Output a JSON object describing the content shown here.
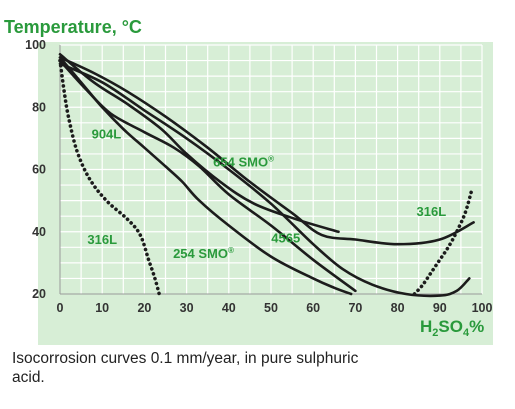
{
  "chart_data": {
    "type": "line",
    "ylabel": "Temperature, °C",
    "xlabel": "H2SO4%",
    "xlabel_parts": {
      "base": "H",
      "sub1": "2",
      "mid": "SO",
      "sub2": "4",
      "tail": "%"
    },
    "xlim": [
      0,
      100
    ],
    "ylim": [
      20,
      100
    ],
    "x_ticks": [
      0,
      10,
      20,
      30,
      40,
      50,
      60,
      70,
      80,
      90,
      100
    ],
    "y_ticks": [
      20,
      40,
      60,
      80,
      100
    ],
    "grid": true,
    "series": [
      {
        "name": "316L",
        "style": "dotted",
        "points": [
          [
            0,
            95
          ],
          [
            1,
            85
          ],
          [
            2,
            77
          ],
          [
            4,
            66
          ],
          [
            7,
            57
          ],
          [
            11,
            50
          ],
          [
            16,
            44
          ],
          [
            19,
            39
          ],
          [
            21,
            31
          ],
          [
            22.5,
            25
          ],
          [
            23.5,
            20
          ]
        ]
      },
      {
        "name": "316L",
        "style": "dotted",
        "points": [
          [
            84,
            20
          ],
          [
            86,
            23
          ],
          [
            88,
            27
          ],
          [
            90,
            31
          ],
          [
            92,
            35
          ],
          [
            94,
            40
          ],
          [
            96,
            46
          ],
          [
            97.5,
            53
          ]
        ]
      },
      {
        "name": "904L",
        "style": "solid",
        "points": [
          [
            0,
            95
          ],
          [
            6,
            86
          ],
          [
            12,
            78
          ],
          [
            20,
            72
          ],
          [
            27,
            67
          ],
          [
            33,
            61
          ],
          [
            40,
            52
          ],
          [
            50,
            42
          ],
          [
            60,
            31
          ],
          [
            70,
            21
          ]
        ]
      },
      {
        "name": "654 SMO®",
        "style": "solid",
        "points": [
          [
            0,
            96
          ],
          [
            8,
            91
          ],
          [
            16,
            85
          ],
          [
            25,
            77
          ],
          [
            35,
            67
          ],
          [
            45,
            56
          ],
          [
            55,
            46
          ],
          [
            62,
            39
          ],
          [
            70,
            37.5
          ],
          [
            80,
            36
          ],
          [
            90,
            37.5
          ],
          [
            98,
            43
          ]
        ]
      },
      {
        "name": "254 SMO®",
        "style": "solid",
        "points": [
          [
            0,
            96
          ],
          [
            5,
            88
          ],
          [
            10,
            80
          ],
          [
            15,
            73
          ],
          [
            20,
            67
          ],
          [
            25,
            61
          ],
          [
            29,
            56
          ],
          [
            33,
            50
          ],
          [
            40,
            42
          ],
          [
            50,
            32
          ],
          [
            60,
            25
          ],
          [
            65,
            22
          ],
          [
            69,
            20
          ]
        ]
      },
      {
        "name": "4565",
        "style": "solid",
        "points": [
          [
            0,
            94
          ],
          [
            10,
            88
          ],
          [
            20,
            79
          ],
          [
            30,
            70
          ],
          [
            40,
            60
          ],
          [
            50,
            49
          ],
          [
            60,
            36
          ],
          [
            67,
            28
          ],
          [
            74,
            23
          ],
          [
            82,
            20
          ],
          [
            90,
            19.5
          ],
          [
            94,
            21
          ],
          [
            97,
            25
          ]
        ]
      },
      {
        "name": "",
        "style": "solid",
        "points": [
          [
            0,
            97
          ],
          [
            8,
            88
          ],
          [
            16,
            81
          ],
          [
            24,
            73
          ],
          [
            30,
            65
          ],
          [
            38,
            56
          ],
          [
            46,
            49
          ],
          [
            56,
            44
          ],
          [
            66,
            40
          ]
        ]
      }
    ],
    "annotations": [
      {
        "text": "904L",
        "x": 11,
        "y": 70
      },
      {
        "text": "654 SMO",
        "sup": "®",
        "x": 43.5,
        "y": 61
      },
      {
        "text": "316L",
        "x": 88,
        "y": 45
      },
      {
        "text": "316L",
        "x": 10,
        "y": 36
      },
      {
        "text": "4565",
        "x": 53.5,
        "y": 36.5
      },
      {
        "text": "254 SMO",
        "sup": "®",
        "x": 34,
        "y": 31.5
      }
    ],
    "colors": {
      "panel": "#d7eed6",
      "grid": "#ffffff",
      "label": "#2a9a3c",
      "curve": "#1c1c1c"
    }
  },
  "caption": "Isocorrosion curves 0.1 mm/year, in pure sulphuric acid."
}
